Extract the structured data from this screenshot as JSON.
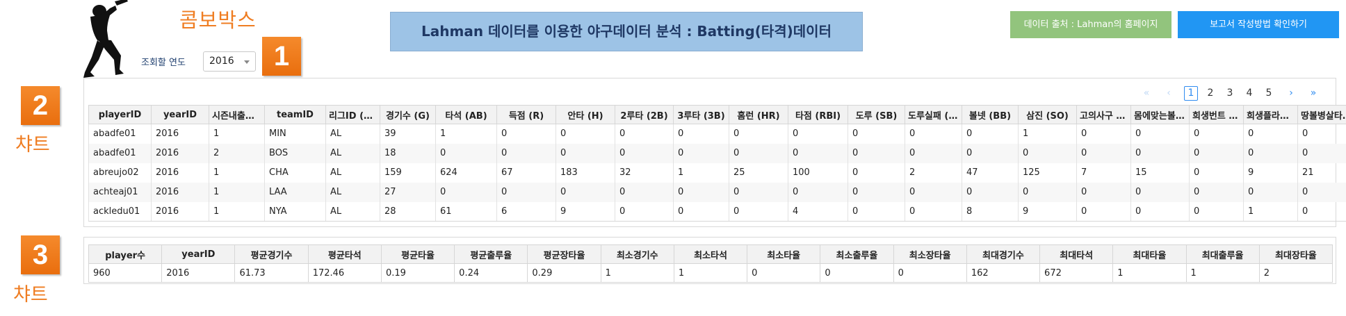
{
  "header": {
    "combo_label": "콤보박스",
    "year_label": "조회할 연도",
    "year_selected": "2016",
    "badge1": "1",
    "title": "Lahman 데이터를 이용한 야구데이터 분석 : Batting(타격)데이터",
    "source_button": "데이터 출처 : Lahman의 홈페이지",
    "guide_button": "보고서 작성방법 확인하기"
  },
  "section2": {
    "badge": "2",
    "label": "챠트"
  },
  "section3": {
    "badge": "3",
    "label": "챠트"
  },
  "pagination": {
    "first": "«",
    "prev": "‹",
    "next": "›",
    "last": "»",
    "pages": [
      "1",
      "2",
      "3",
      "4",
      "5"
    ],
    "current": "1"
  },
  "batting_table": {
    "headers": [
      "playerID",
      "yearID",
      "시즌내출전순서",
      "teamID",
      "리그ID (AL/NL)",
      "경기수 (G)",
      "타석 (AB)",
      "득점 (R)",
      "안타 (H)",
      "2루타 (2B)",
      "3루타 (3B)",
      "홈런 (HR)",
      "타점 (RBI)",
      "도루 (SB)",
      "도루실패 (CS)",
      "볼넷 (BB)",
      "삼진 (SO)",
      "고의사구 (IBB)",
      "몸에맞는볼 (HBP)",
      "희생번트 (SH)",
      "희생플라이 (SF)",
      "땅볼병살타 (GIDP)"
    ],
    "rows": [
      [
        "abadfe01",
        "2016",
        "1",
        "MIN",
        "AL",
        "39",
        "1",
        "0",
        "0",
        "0",
        "0",
        "0",
        "0",
        "0",
        "0",
        "0",
        "1",
        "0",
        "0",
        "0",
        "0",
        "0"
      ],
      [
        "abadfe01",
        "2016",
        "2",
        "BOS",
        "AL",
        "18",
        "0",
        "0",
        "0",
        "0",
        "0",
        "0",
        "0",
        "0",
        "0",
        "0",
        "0",
        "0",
        "0",
        "0",
        "0",
        "0"
      ],
      [
        "abreujo02",
        "2016",
        "1",
        "CHA",
        "AL",
        "159",
        "624",
        "67",
        "183",
        "32",
        "1",
        "25",
        "100",
        "0",
        "2",
        "47",
        "125",
        "7",
        "15",
        "0",
        "9",
        "21"
      ],
      [
        "achteaj01",
        "2016",
        "1",
        "LAA",
        "AL",
        "27",
        "0",
        "0",
        "0",
        "0",
        "0",
        "0",
        "0",
        "0",
        "0",
        "0",
        "0",
        "0",
        "0",
        "0",
        "0",
        "0"
      ],
      [
        "ackledu01",
        "2016",
        "1",
        "NYA",
        "AL",
        "28",
        "61",
        "6",
        "9",
        "0",
        "0",
        "0",
        "4",
        "0",
        "0",
        "8",
        "9",
        "0",
        "0",
        "0",
        "1",
        "0"
      ]
    ]
  },
  "summary_table": {
    "headers": [
      "player수",
      "yearID",
      "평균경기수",
      "평균타석",
      "평균타율",
      "평균출루율",
      "평균장타율",
      "최소경기수",
      "최소타석",
      "최소타율",
      "최소출루율",
      "최소장타율",
      "최대경기수",
      "최대타석",
      "최대타율",
      "최대출루율",
      "최대장타율"
    ],
    "rows": [
      [
        "960",
        "2016",
        "61.73",
        "172.46",
        "0.19",
        "0.24",
        "0.29",
        "1",
        "1",
        "0",
        "0",
        "0",
        "162",
        "672",
        "1",
        "1",
        "2"
      ]
    ]
  }
}
